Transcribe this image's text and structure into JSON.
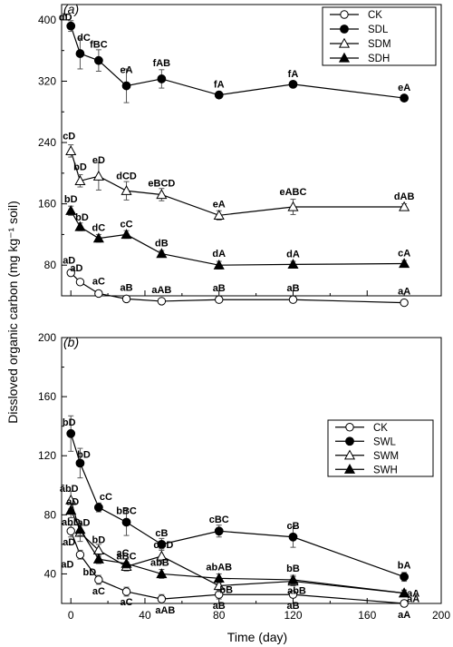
{
  "figure": {
    "ylabel": "Dissloved organic carbon (mg kg⁻¹ soil)",
    "xlabel": "Time (day)"
  },
  "chart_data": [
    {
      "type": "line",
      "panel": "(a)",
      "x": [
        0,
        5,
        15,
        30,
        49,
        80,
        120,
        180
      ],
      "xlim": [
        -5,
        200
      ],
      "ylim": [
        40,
        420
      ],
      "yticks": [
        80,
        160,
        240,
        320,
        400
      ],
      "xticks": [],
      "legend_position": "top-right",
      "series": [
        {
          "name": "CK",
          "marker": "open-circle",
          "values": [
            70,
            58,
            43,
            36,
            33,
            35,
            35,
            31
          ],
          "errors": [
            4,
            3,
            3,
            3,
            3,
            3,
            3,
            3
          ],
          "labels": [
            "aD",
            "aD",
            "aC",
            "aB",
            "aAB",
            "aB",
            "aB",
            "aA"
          ]
        },
        {
          "name": "SDL",
          "marker": "filled-circle",
          "values": [
            392,
            356,
            347,
            314,
            323,
            302,
            316,
            298
          ],
          "errors": [
            7,
            20,
            14,
            22,
            12,
            4,
            4,
            4
          ],
          "labels": [
            "dD",
            "dC",
            "fBC",
            "eA",
            "fAB",
            "fA",
            "fA",
            "eA"
          ]
        },
        {
          "name": "SDM",
          "marker": "open-triangle",
          "values": [
            229,
            190,
            196,
            177,
            172,
            145,
            156,
            156
          ],
          "errors": [
            8,
            8,
            18,
            12,
            8,
            6,
            10,
            4
          ],
          "labels": [
            "cD",
            "bD",
            "eD",
            "dCD",
            "eBCD",
            "eA",
            "eABC",
            "dAB"
          ]
        },
        {
          "name": "SDH",
          "marker": "filled-triangle",
          "values": [
            151,
            130,
            115,
            120,
            95,
            80,
            81,
            82
          ],
          "errors": [
            6,
            5,
            5,
            5,
            4,
            5,
            4,
            4
          ],
          "labels": [
            "bD",
            "bD",
            "dC",
            "cC",
            "dB",
            "dA",
            "dA",
            "cA"
          ]
        }
      ]
    },
    {
      "type": "line",
      "panel": "(b)",
      "x": [
        0,
        5,
        15,
        30,
        49,
        80,
        120,
        180
      ],
      "xlim": [
        -5,
        200
      ],
      "ylim": [
        20,
        200
      ],
      "yticks": [
        40,
        80,
        120,
        160,
        200
      ],
      "xticks": [
        0,
        40,
        80,
        120,
        160,
        200
      ],
      "legend_position": "top-right",
      "series": [
        {
          "name": "CK",
          "marker": "open-circle",
          "values": [
            69,
            53,
            36,
            28,
            23,
            26,
            26,
            20
          ],
          "errors": [
            4,
            3,
            3,
            3,
            3,
            3,
            2,
            2
          ],
          "labels": [
            "aD",
            "aD",
            "aC",
            "aC",
            "aAB",
            "aB",
            "aB",
            "aA"
          ]
        },
        {
          "name": "SWL",
          "marker": "filled-circle",
          "values": [
            135,
            115,
            85,
            75,
            60,
            69,
            65,
            38
          ],
          "errors": [
            12,
            10,
            3,
            9,
            4,
            4,
            7,
            3
          ],
          "labels": [
            "bD",
            "bD",
            "cC",
            "bBC",
            "cB",
            "cBC",
            "cB",
            "bA"
          ]
        },
        {
          "name": "SWM",
          "marker": "open-triangle",
          "values": [
            90,
            68,
            56,
            45,
            52,
            32,
            35,
            27
          ],
          "errors": [
            6,
            6,
            4,
            3,
            5,
            4,
            3,
            2
          ],
          "labels": [
            "abD",
            "abD",
            "bD",
            "aBC",
            "cCD",
            "bB",
            "abB",
            "aA"
          ]
        },
        {
          "name": "SWH",
          "marker": "filled-triangle",
          "values": [
            83,
            70,
            50,
            47,
            40,
            37,
            36,
            27
          ],
          "errors": [
            5,
            4,
            3,
            3,
            3,
            3,
            3,
            2
          ],
          "labels": [
            "aD",
            "aD",
            "bD",
            "aC",
            "abB",
            "abAB",
            "bB",
            "aA"
          ]
        }
      ]
    }
  ]
}
